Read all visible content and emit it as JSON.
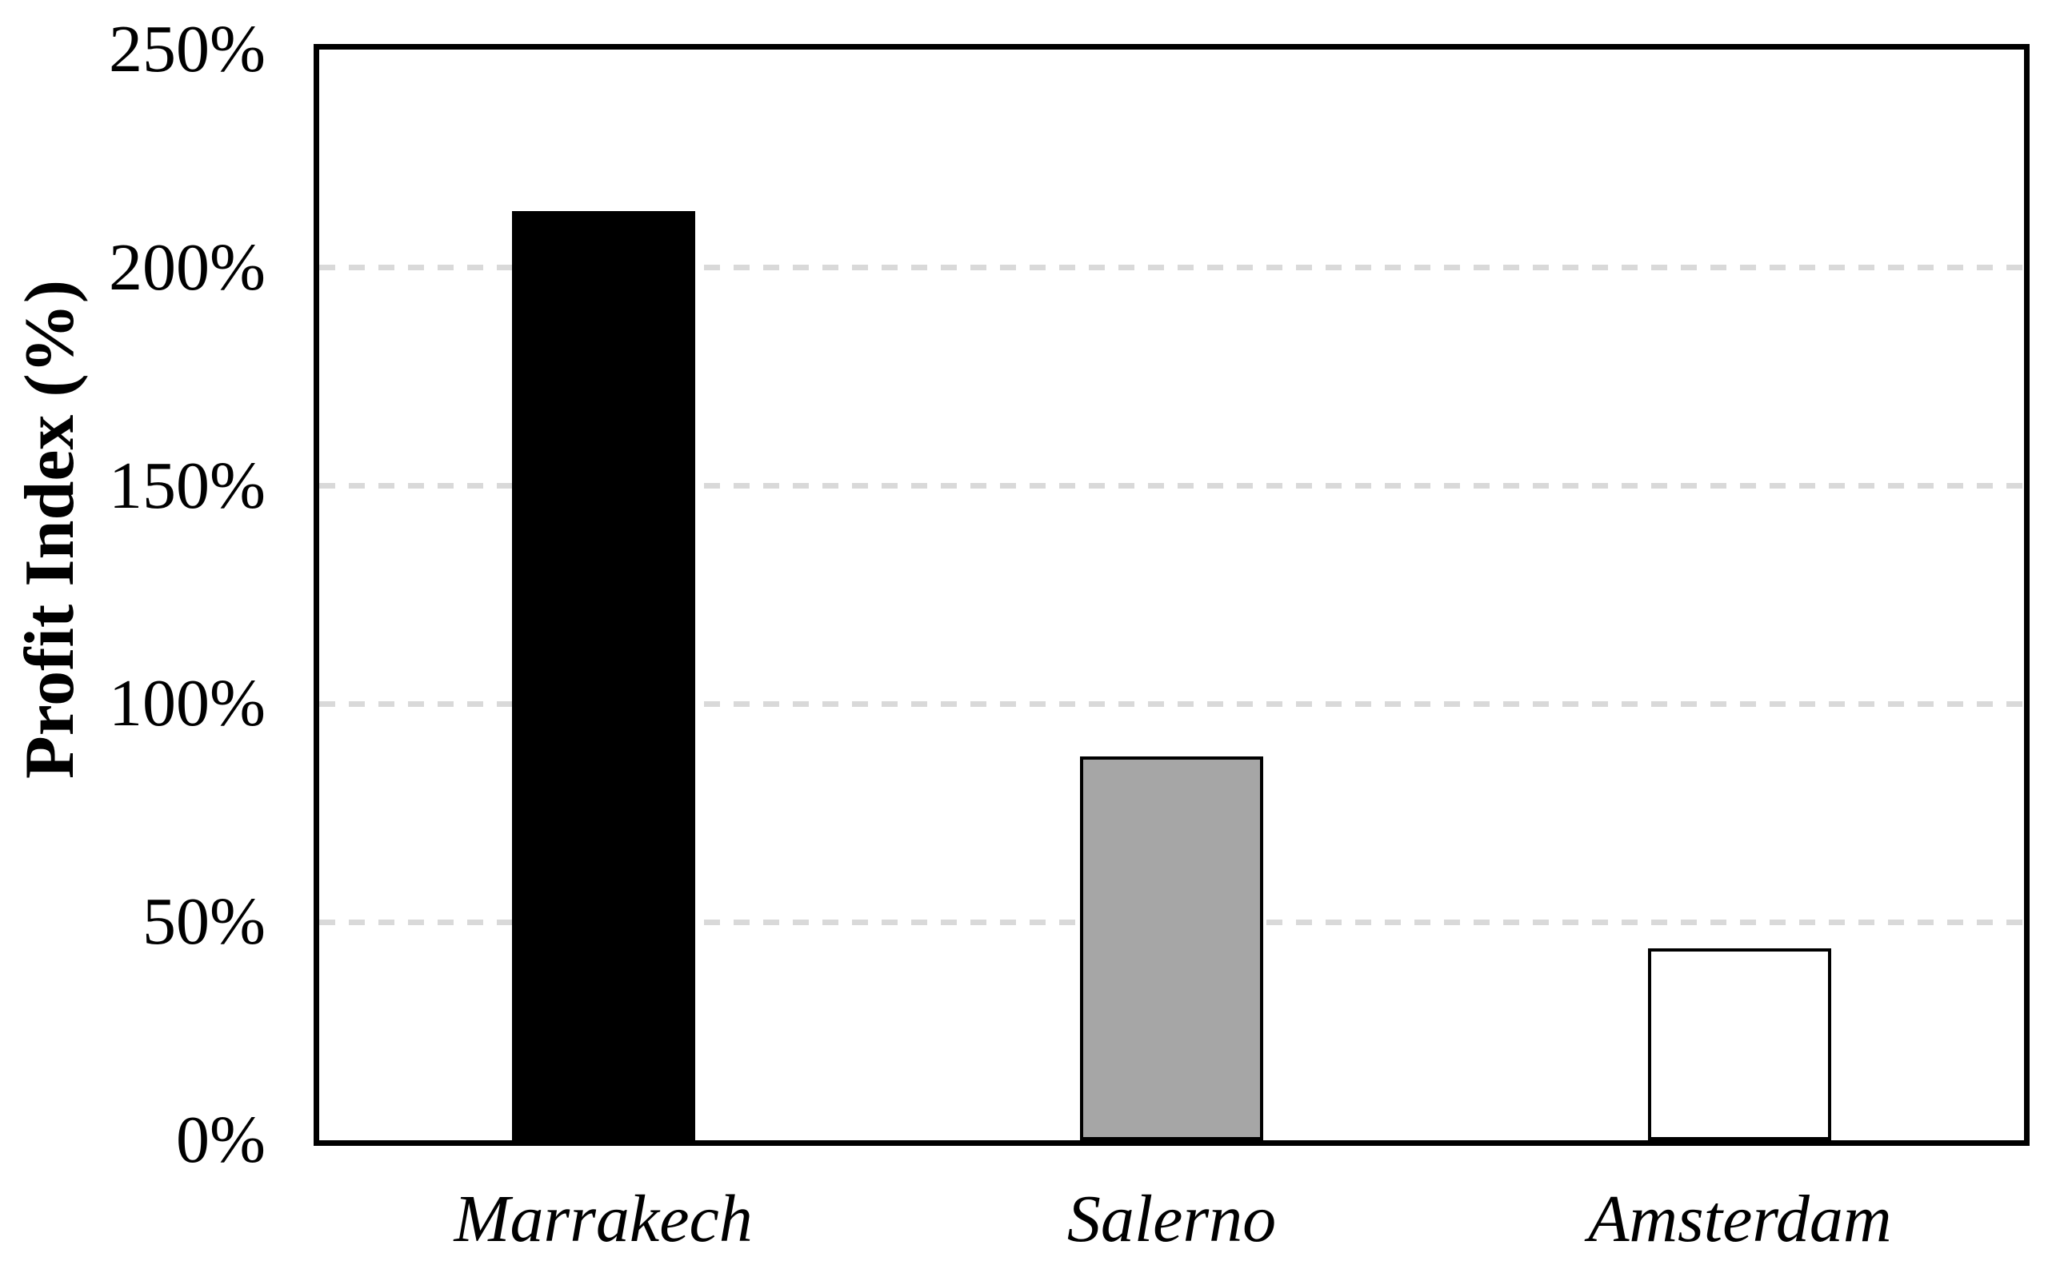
{
  "chart_data": {
    "type": "bar",
    "title": "",
    "categories": [
      "Marrakech",
      "Salerno",
      "Amsterdam"
    ],
    "values": [
      213,
      88,
      44
    ],
    "value_unit": "%",
    "xlabel": "",
    "ylabel": "Profit Index (%)",
    "ylim": [
      0,
      250
    ],
    "ytick_values": [
      0,
      50,
      100,
      150,
      200,
      250
    ],
    "ytick_labels": [
      "0%",
      "50%",
      "100%",
      "150%",
      "200%",
      "250%"
    ],
    "gridlines": {
      "values": [
        50,
        100,
        150,
        200
      ],
      "style": "dashed",
      "color": "#D9D9D9"
    },
    "legend": "none",
    "grid": true,
    "bars": [
      {
        "category": "Marrakech",
        "value": 213,
        "fill": "#000000",
        "border": "#000000"
      },
      {
        "category": "Salerno",
        "value": 88,
        "fill": "#A6A6A6",
        "border": "#000000"
      },
      {
        "category": "Amsterdam",
        "value": 44,
        "fill": "#FFFFFF",
        "border": "#000000"
      }
    ],
    "plot_border_color": "#000000",
    "axis_text_color": "#000000",
    "background_color": "#FFFFFF"
  }
}
